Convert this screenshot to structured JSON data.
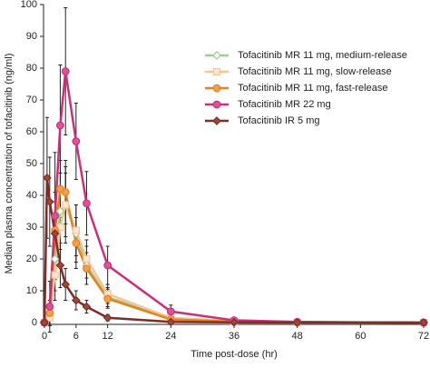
{
  "chart_data": {
    "type": "line",
    "xlabel": "Time post-dose (hr)",
    "ylabel": "Median plasma concentration of tofacitinib (ng/ml)",
    "xlim": [
      0,
      72
    ],
    "xticks": [
      0,
      6,
      12,
      24,
      36,
      48,
      60,
      72
    ],
    "ylim": [
      0,
      100
    ],
    "yticks": [
      0,
      10,
      20,
      30,
      40,
      50,
      60,
      70,
      80,
      90,
      100
    ],
    "series": [
      {
        "name": "Tofacitinib MR 11 mg, medium-release",
        "color": "#9ccf8a",
        "marker": "diamond",
        "marker_fill": "#ffffff",
        "x": [
          0,
          1,
          2,
          3,
          4,
          6,
          8,
          12,
          24,
          36,
          48,
          72
        ],
        "values": [
          0,
          2,
          20,
          35,
          37,
          28,
          18,
          8,
          1.2,
          0.3,
          0.1,
          0
        ],
        "errors": [
          0,
          3,
          10,
          12,
          12,
          9,
          6,
          3,
          1,
          0.3,
          0.1,
          0
        ]
      },
      {
        "name": "Tofacitinib MR 11 mg, slow-release",
        "color": "#f5c49a",
        "marker": "square",
        "marker_fill": "#fbe6d2",
        "x": [
          0,
          1,
          2,
          3,
          4,
          6,
          8,
          12,
          24,
          36,
          48,
          72
        ],
        "values": [
          0,
          1.5,
          15,
          30,
          37,
          29,
          20,
          9,
          1.5,
          0.4,
          0.1,
          0
        ],
        "errors": [
          0,
          2,
          8,
          12,
          10,
          8,
          6,
          3,
          1,
          0.3,
          0.1,
          0
        ]
      },
      {
        "name": "Tofacitinib MR 11 mg, fast-release",
        "color": "#e8801e",
        "marker": "circle",
        "marker_fill": "#f0a050",
        "x": [
          0,
          1,
          2,
          3,
          4,
          6,
          8,
          12,
          24,
          36,
          48,
          72
        ],
        "values": [
          0,
          3,
          29,
          42,
          41,
          25,
          17,
          7.5,
          1,
          0.3,
          0.1,
          0
        ],
        "errors": [
          0,
          4,
          12,
          9,
          10,
          8,
          5,
          3,
          1,
          0.3,
          0.1,
          0
        ]
      },
      {
        "name": "Tofacitinib MR 22 mg",
        "color": "#c8317a",
        "marker": "circle",
        "marker_fill": "#d9559a",
        "x": [
          0,
          1,
          2,
          3,
          4,
          6,
          8,
          12,
          24,
          36,
          48,
          72
        ],
        "values": [
          0,
          5,
          33.5,
          62,
          79,
          57,
          37.5,
          18,
          3.5,
          0.7,
          0.2,
          0
        ],
        "errors": [
          0,
          8,
          20,
          19,
          20,
          12,
          10,
          6,
          2,
          0.5,
          0.2,
          0
        ]
      },
      {
        "name": "Tofacitinib IR 5 mg",
        "color": "#7b2d26",
        "marker": "diamond",
        "marker_fill": "#9a4a3c",
        "x": [
          0,
          0.5,
          1,
          2,
          3,
          4,
          6,
          8,
          12,
          24,
          36,
          48,
          72
        ],
        "values": [
          0,
          45.5,
          38,
          28,
          18,
          12,
          7,
          5,
          1.5,
          0.2,
          0.05,
          0,
          0
        ],
        "errors": [
          0,
          19,
          14,
          10,
          7,
          5,
          3,
          2,
          1,
          0.2,
          0.05,
          0,
          0
        ]
      }
    ]
  }
}
